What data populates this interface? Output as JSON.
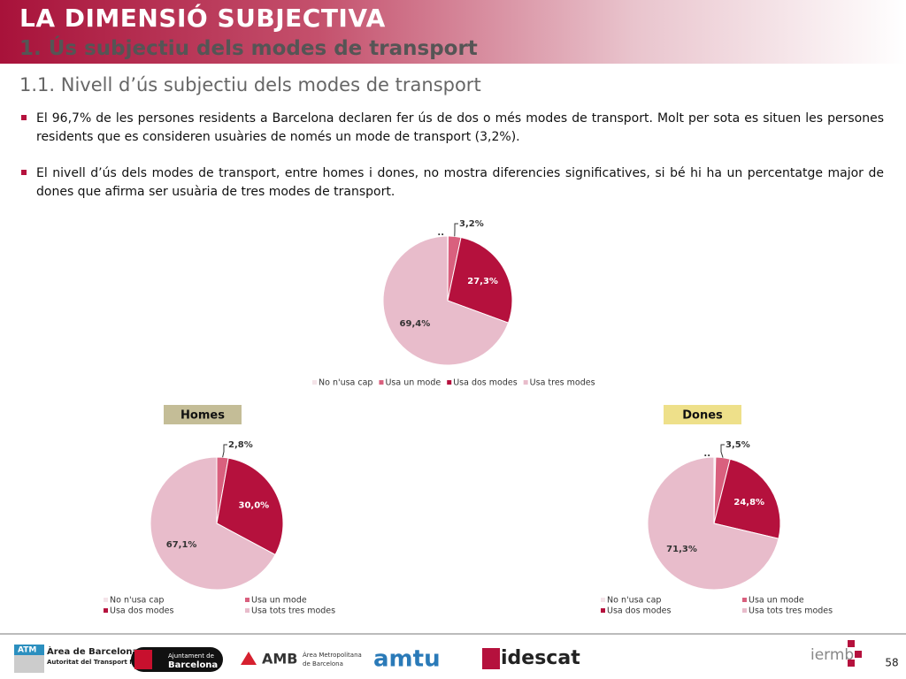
{
  "header": {
    "title": "LA DIMENSIÓ SUBJECTIVA",
    "subtitle": "1. Ús subjectiu dels modes de transport",
    "section": "1.1. Nivell d’ús subjectiu dels modes de transport"
  },
  "bullets": [
    "El 96,7% de les persones residents a Barcelona declaren fer ús de dos o més modes de transport. Molt per sota es situen les persones residents que es consideren usuàries de només un mode de transport (3,2%).",
    "El nivell d’ús dels modes de transport, entre homes i dones, no mostra diferencies significatives, si bé hi ha un percentatge major de dones que afirma ser usuària de tres modes de transport."
  ],
  "chart_data": [
    {
      "type": "pie",
      "categories": [
        "No n'usa cap",
        "Usa un mode",
        "Usa dos modes",
        "Usa tres modes"
      ],
      "values": [
        0.1,
        3.2,
        27.3,
        69.4
      ],
      "value_labels": [
        "..",
        "3,2%",
        "27,3%",
        "69,4%"
      ],
      "colors": [
        "#f4e3e8",
        "#d9607e",
        "#b5113d",
        "#e8bccb"
      ]
    },
    {
      "type": "pie",
      "title": "Homes",
      "categories": [
        "No n'usa cap",
        "Usa un mode",
        "Usa dos modes",
        "Usa tots tres modes"
      ],
      "values": [
        0,
        2.8,
        30.0,
        67.1
      ],
      "value_labels": [
        null,
        "2,8%",
        "30,0%",
        "67,1%"
      ],
      "colors": [
        "#f4e3e8",
        "#d9607e",
        "#b5113d",
        "#e8bccb"
      ]
    },
    {
      "type": "pie",
      "title": "Dones",
      "categories": [
        "No n'usa cap",
        "Usa un mode",
        "Usa dos modes",
        "Usa tots tres modes"
      ],
      "values": [
        0.4,
        3.5,
        24.8,
        71.3
      ],
      "value_labels": [
        "..",
        "3,5%",
        "24,8%",
        "71,3%"
      ],
      "colors": [
        "#f4e3e8",
        "#d9607e",
        "#b5113d",
        "#e8bccb"
      ]
    }
  ],
  "footer": {
    "logos": [
      "ATM",
      "Àrea de Barcelona",
      "Autoritat del Transport Metropolità",
      "Ajuntament de",
      "Barcelona",
      "AMB",
      "Àrea Metropolitana",
      "de Barcelona",
      "amtu",
      "idescat",
      "iermb"
    ],
    "page": "58"
  }
}
